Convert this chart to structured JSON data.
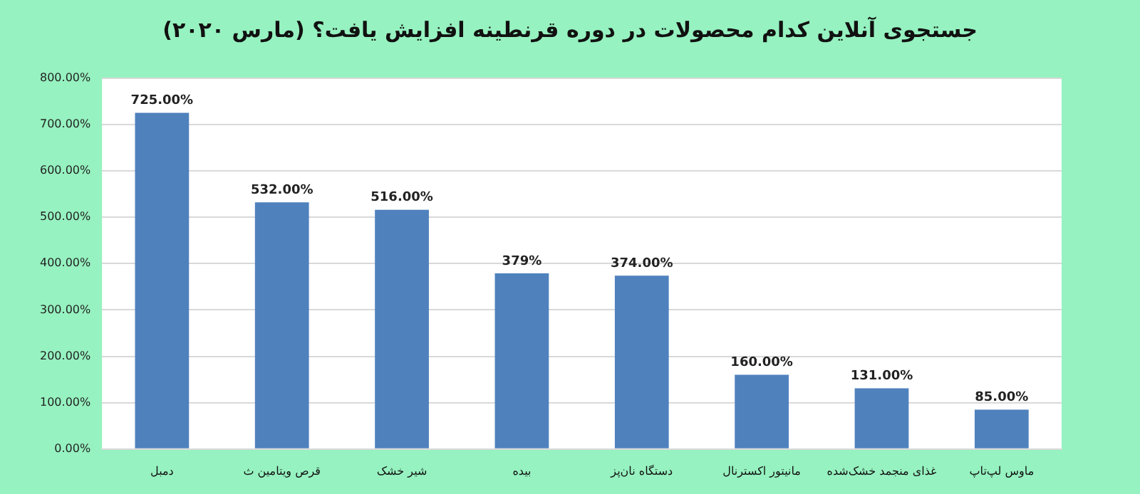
{
  "chart_data": {
    "type": "bar",
    "title": "جستجوی آنلاین کدام محصولات در دوره قرنطینه افزایش یافت؟ (مارس ۲۰۲۰)",
    "categories": [
      "دمبل",
      "قرص ویتامین ث",
      "شیر خشک",
      "بیده",
      "دستگاه نان‌پز",
      "مانیتور اکسترنال",
      "غذای منجمد خشک‌شده",
      "ماوس لپ‌تاپ"
    ],
    "values": [
      725,
      532,
      516,
      379,
      374,
      160,
      131,
      85
    ],
    "value_labels": [
      "725.00%",
      "532.00%",
      "516.00%",
      "379%",
      "374.00%",
      "160.00%",
      "131.00%",
      "85.00%"
    ],
    "color": "#4f81bd",
    "ylim": [
      0,
      800
    ],
    "yticks": [
      {
        "value": 0,
        "label": "0.00%"
      },
      {
        "value": 100,
        "label": "100.00%"
      },
      {
        "value": 200,
        "label": "200.00%"
      },
      {
        "value": 300,
        "label": "300.00%"
      },
      {
        "value": 400,
        "label": "400.00%"
      },
      {
        "value": 500,
        "label": "500.00%"
      },
      {
        "value": 600,
        "label": "600.00%"
      },
      {
        "value": 700,
        "label": "700.00%"
      },
      {
        "value": 800,
        "label": "800.00%"
      }
    ],
    "grid": "y",
    "legend": false
  }
}
